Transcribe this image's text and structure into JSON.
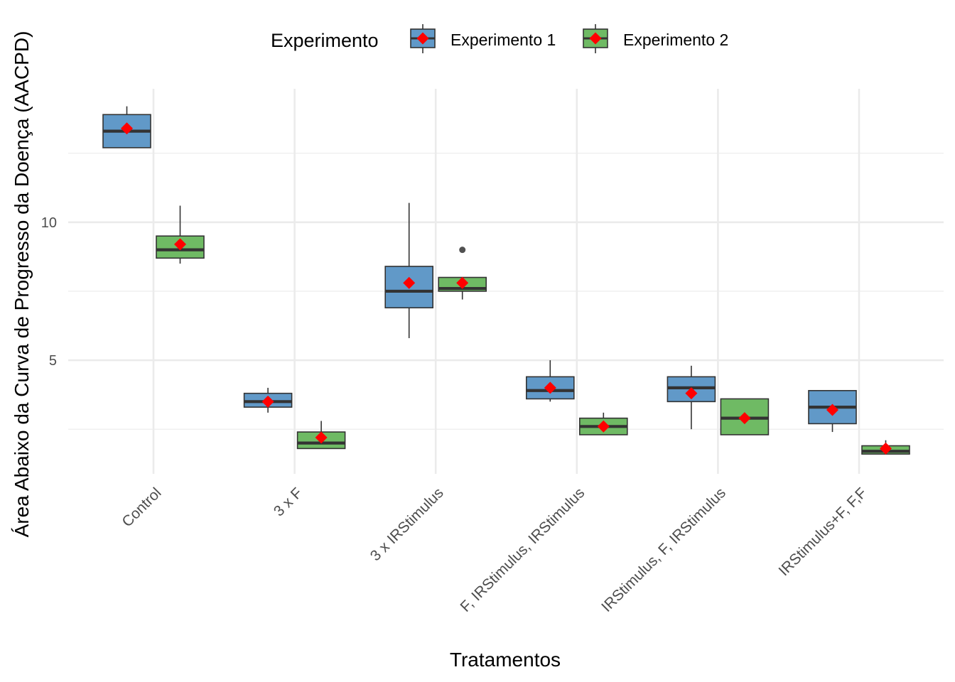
{
  "chart_data": {
    "type": "box",
    "xlabel": "Tratamentos",
    "ylabel": "Área Abaixo da Curva de Progresso da Doença (AACPD)",
    "legend_title": "Experimento",
    "legend_position": "top",
    "grid": true,
    "ylim": [
      1.2,
      15.2
    ],
    "y_ticks": [
      5,
      10
    ],
    "categories": [
      "Control",
      "3 x F",
      "3 x IRStimulus",
      "F, IRStimulus, IRStimulus",
      "IRStimulus, F, IRStimulus",
      "IRStimulus+F, F,F"
    ],
    "series": [
      {
        "name": "Experimento 1",
        "color": "#6199c8",
        "boxes": [
          {
            "whisker_low": 12.7,
            "q1": 12.7,
            "median": 13.3,
            "q3": 13.9,
            "whisker_high": 14.2,
            "mean": 13.4,
            "outliers": []
          },
          {
            "whisker_low": 3.1,
            "q1": 3.3,
            "median": 3.5,
            "q3": 3.8,
            "whisker_high": 4.0,
            "mean": 3.5,
            "outliers": []
          },
          {
            "whisker_low": 5.8,
            "q1": 6.9,
            "median": 7.5,
            "q3": 8.4,
            "whisker_high": 10.7,
            "mean": 7.8,
            "outliers": []
          },
          {
            "whisker_low": 3.5,
            "q1": 3.6,
            "median": 3.9,
            "q3": 4.4,
            "whisker_high": 5.0,
            "mean": 4.0,
            "outliers": []
          },
          {
            "whisker_low": 2.5,
            "q1": 3.5,
            "median": 4.0,
            "q3": 4.4,
            "whisker_high": 4.8,
            "mean": 3.8,
            "outliers": []
          },
          {
            "whisker_low": 2.4,
            "q1": 2.7,
            "median": 3.3,
            "q3": 3.9,
            "whisker_high": 3.9,
            "mean": 3.2,
            "outliers": []
          }
        ]
      },
      {
        "name": "Experimento 2",
        "color": "#6fba64",
        "boxes": [
          {
            "whisker_low": 8.5,
            "q1": 8.7,
            "median": 9.0,
            "q3": 9.5,
            "whisker_high": 10.6,
            "mean": 9.2,
            "outliers": []
          },
          {
            "whisker_low": 1.8,
            "q1": 1.8,
            "median": 2.0,
            "q3": 2.4,
            "whisker_high": 2.8,
            "mean": 2.2,
            "outliers": []
          },
          {
            "whisker_low": 7.2,
            "q1": 7.5,
            "median": 7.6,
            "q3": 8.0,
            "whisker_high": 8.0,
            "mean": 7.8,
            "outliers": [
              9.0
            ]
          },
          {
            "whisker_low": 2.3,
            "q1": 2.3,
            "median": 2.6,
            "q3": 2.9,
            "whisker_high": 3.1,
            "mean": 2.6,
            "outliers": []
          },
          {
            "whisker_low": 2.3,
            "q1": 2.3,
            "median": 2.9,
            "q3": 3.6,
            "whisker_high": 3.6,
            "mean": 2.9,
            "outliers": []
          },
          {
            "whisker_low": 1.6,
            "q1": 1.6,
            "median": 1.7,
            "q3": 1.9,
            "whisker_high": 2.1,
            "mean": 1.8,
            "outliers": []
          }
        ]
      }
    ],
    "mean_marker": {
      "shape": "diamond",
      "color": "#ff0000"
    }
  }
}
